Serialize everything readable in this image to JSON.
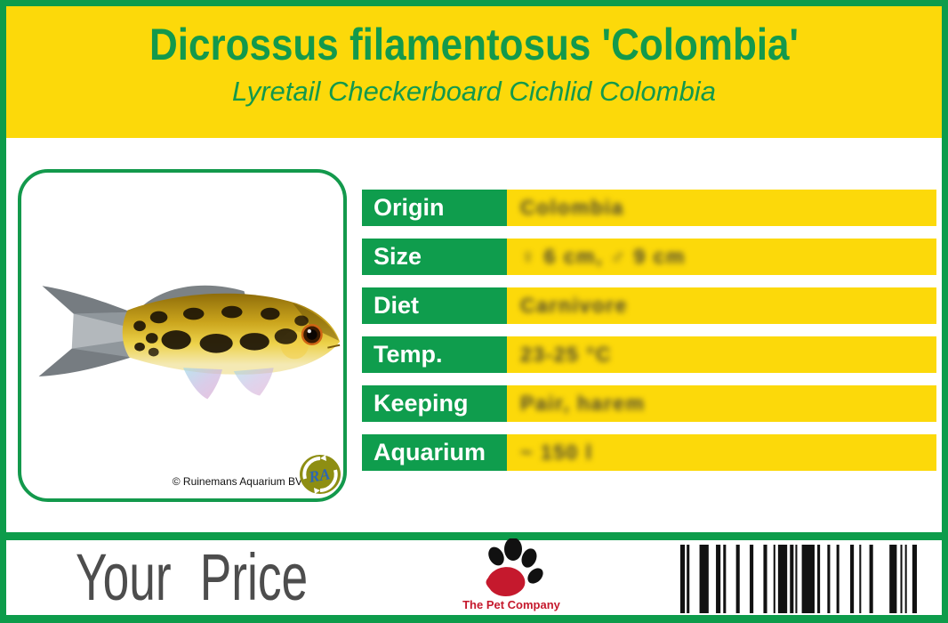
{
  "colors": {
    "green": "#0d9c4b",
    "green_text": "#13994c",
    "yellow": "#fcd90a",
    "white": "#ffffff",
    "price_gray": "#4d4d4d",
    "logo_red": "#c5192d",
    "value_text": "#4b4632"
  },
  "header": {
    "title": "Dicrossus filamentosus 'Colombia'",
    "subtitle": "Lyretail Checkerboard Cichlid Colombia"
  },
  "photo": {
    "copyright": "© Ruinemans Aquarium BV",
    "logo_monogram": "RA"
  },
  "table": {
    "rows": [
      {
        "label": "Origin",
        "value": "Colombia"
      },
      {
        "label": "Size",
        "value": "♀ 6 cm, ♂ 9 cm"
      },
      {
        "label": "Diet",
        "value": "Carnivore"
      },
      {
        "label": "Temp.",
        "value": "23-25 °C"
      },
      {
        "label": "Keeping",
        "value": "Pair, harem"
      },
      {
        "label": "Aquarium",
        "value": "~ 150 l"
      }
    ]
  },
  "footer": {
    "price_label": "Your Price",
    "company": "The Pet Company"
  },
  "icons": {
    "fish": "fish-photo",
    "paw": "paw-icon",
    "barcode": "barcode",
    "ra": "ruinemans-aquarium-logo"
  },
  "barcode": {
    "pattern": [
      5,
      2,
      3,
      11,
      10,
      8,
      5,
      3,
      3,
      11,
      4,
      11,
      4,
      11,
      4,
      7,
      2,
      3,
      10,
      3,
      4,
      2,
      2,
      5,
      14,
      3,
      3,
      8,
      3,
      7,
      3,
      12,
      4,
      6,
      2,
      9,
      4,
      18,
      8,
      4,
      2,
      3,
      2,
      6,
      5
    ]
  }
}
